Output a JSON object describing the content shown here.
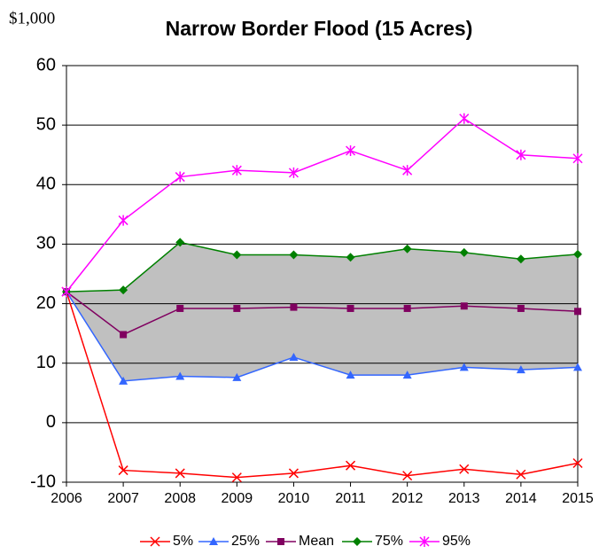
{
  "chart_data": {
    "type": "line",
    "title": "Narrow Border Flood (15 Acres)",
    "unit_label": "$1,000",
    "categories": [
      "2006",
      "2007",
      "2008",
      "2009",
      "2010",
      "2011",
      "2012",
      "2013",
      "2014",
      "2015"
    ],
    "series": [
      {
        "name": "5%",
        "color": "#ff0000",
        "marker": "x",
        "values": [
          22,
          -8,
          -8.5,
          -9.2,
          -8.5,
          -7.2,
          -8.9,
          -7.8,
          -8.7,
          -6.8
        ]
      },
      {
        "name": "25%",
        "color": "#3366ff",
        "marker": "triangle",
        "values": [
          22,
          7,
          7.8,
          7.6,
          11,
          8,
          8,
          9.3,
          8.9,
          9.3
        ]
      },
      {
        "name": "Mean",
        "color": "#800060",
        "marker": "square",
        "values": [
          22,
          14.8,
          19.2,
          19.2,
          19.4,
          19.2,
          19.2,
          19.6,
          19.2,
          18.7
        ]
      },
      {
        "name": "75%",
        "color": "#008000",
        "marker": "diamond",
        "values": [
          22,
          22.3,
          30.3,
          28.2,
          28.2,
          27.8,
          29.2,
          28.6,
          27.5,
          28.3
        ]
      },
      {
        "name": "95%",
        "color": "#ff00ff",
        "marker": "asterisk",
        "values": [
          22,
          34,
          41.3,
          42.4,
          42,
          45.7,
          42.4,
          51.1,
          45,
          44.4
        ]
      }
    ],
    "band_between": [
      "25%",
      "75%"
    ],
    "band_color": "#c0c0c0",
    "ylim": [
      -10,
      60
    ],
    "yticks": [
      -10,
      0,
      10,
      20,
      30,
      40,
      50,
      60
    ],
    "grid": true,
    "legend": "bottom"
  }
}
